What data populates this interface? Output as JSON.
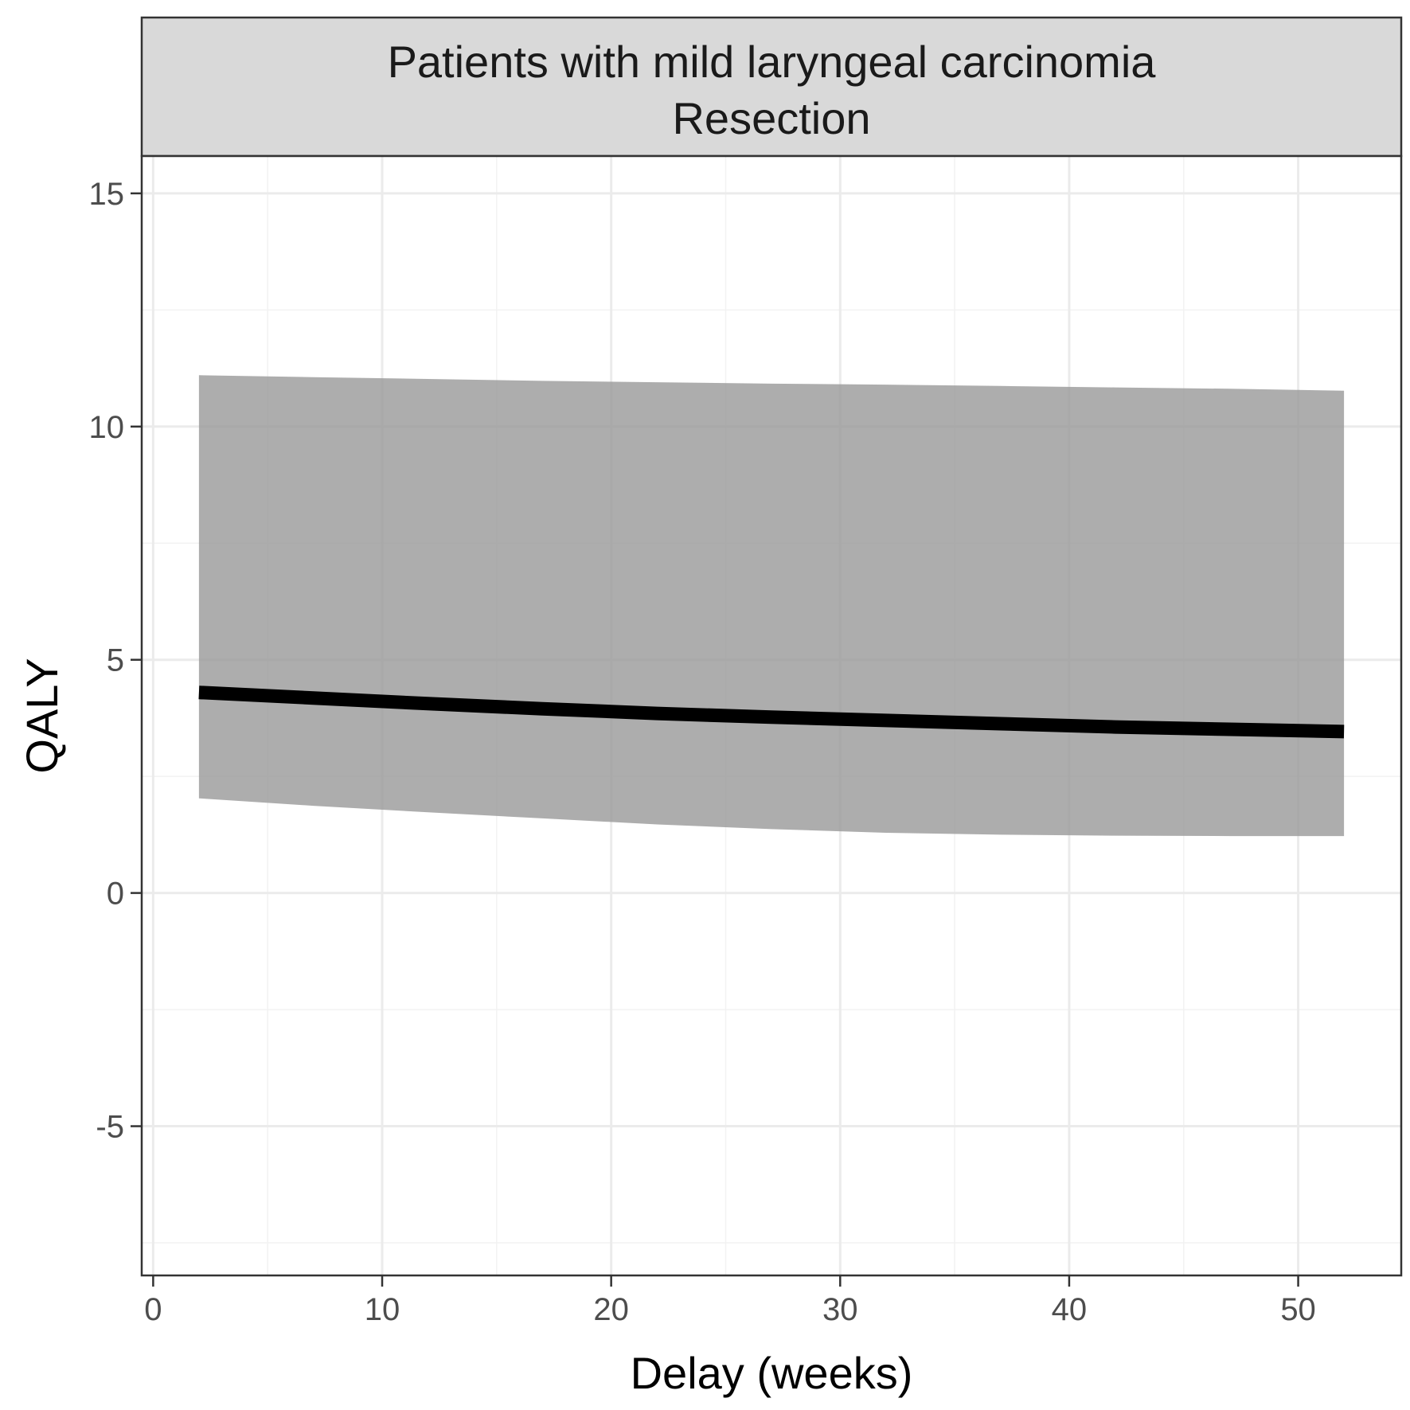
{
  "chart_data": {
    "type": "line",
    "strip": {
      "lines": [
        "Patients with mild laryngeal carcinomia",
        "Resection"
      ],
      "background": "#d9d9d9"
    },
    "xlabel": "Delay (weeks)",
    "ylabel": "QALY",
    "xlim": [
      -0.5,
      54.5
    ],
    "ylim": [
      -8.2,
      15.8
    ],
    "x_ticks_major": [
      0,
      10,
      20,
      30,
      40,
      50
    ],
    "x_ticks_minor": [
      5,
      15,
      25,
      35,
      45
    ],
    "y_ticks_major": [
      -5,
      0,
      5,
      10,
      15
    ],
    "y_ticks_minor": [
      -7.5,
      -2.5,
      2.5,
      7.5,
      12.5
    ],
    "grid": true,
    "series": [
      {
        "name": "",
        "color": "#000000",
        "band_color": "#999999",
        "x": [
          2,
          7,
          12,
          17,
          22,
          27,
          32,
          37,
          42,
          47,
          52
        ],
        "y": [
          4.3,
          4.18,
          4.06,
          3.95,
          3.85,
          3.77,
          3.7,
          3.63,
          3.56,
          3.51,
          3.46
        ],
        "lower": [
          2.03,
          1.87,
          1.73,
          1.6,
          1.47,
          1.37,
          1.29,
          1.25,
          1.23,
          1.22,
          1.22
        ],
        "upper": [
          11.1,
          11.06,
          11.02,
          10.98,
          10.95,
          10.92,
          10.9,
          10.87,
          10.84,
          10.81,
          10.77
        ]
      }
    ]
  }
}
